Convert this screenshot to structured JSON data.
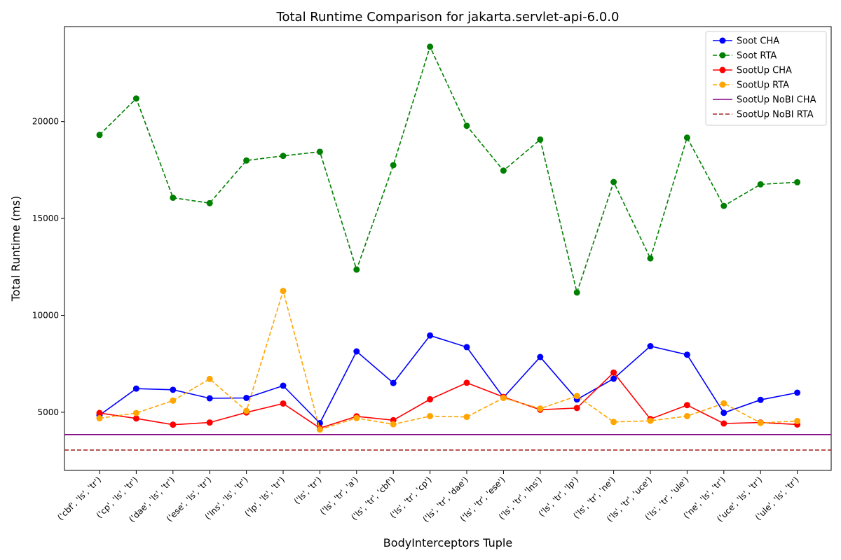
{
  "chart_data": {
    "type": "line",
    "title": "Total Runtime Comparison for jakarta.servlet-api-6.0.0",
    "xlabel": "BodyInterceptors Tuple",
    "ylabel": "Total Runtime (ms)",
    "categories": [
      "('cbf', 'ls', 'tr')",
      "('cp', 'ls', 'tr')",
      "('dae', 'ls', 'tr')",
      "('ese', 'ls', 'tr')",
      "('lns', 'ls', 'tr')",
      "('lp', 'ls', 'tr')",
      "('ls', 'tr')",
      "('ls', 'tr', 'a')",
      "('ls', 'tr', 'cbf')",
      "('ls', 'tr', 'cp')",
      "('ls', 'tr', 'dae')",
      "('ls', 'tr', 'ese')",
      "('ls', 'tr', 'lns')",
      "('ls', 'tr', 'lp')",
      "('ls', 'tr', 'ne')",
      "('ls', 'tr', 'uce')",
      "('ls', 'tr', 'ule')",
      "('ne', 'ls', 'tr')",
      "('uce', 'ls', 'tr')",
      "('ule', 'ls', 'tr')"
    ],
    "ylim": [
      2000,
      24900
    ],
    "yticks": [
      5000,
      10000,
      15000,
      20000
    ],
    "grid": false,
    "legend_position": "top-right",
    "series": [
      {
        "name": "Soot CHA",
        "color": "#0000ff",
        "style": "solid",
        "marker": true,
        "values": [
          4850,
          6220,
          6160,
          5720,
          5740,
          6370,
          4440,
          8140,
          6510,
          8960,
          8360,
          5760,
          7850,
          5660,
          6730,
          8410,
          7970,
          4970,
          5640,
          6010
        ]
      },
      {
        "name": "Soot RTA",
        "color": "#008000",
        "style": "dashed",
        "marker": true,
        "values": [
          19310,
          21190,
          16070,
          15790,
          17990,
          18230,
          18440,
          12360,
          17750,
          23860,
          19780,
          17470,
          19070,
          11180,
          16880,
          12940,
          19170,
          15650,
          16760,
          16870
        ]
      },
      {
        "name": "SootUp CHA",
        "color": "#ff0000",
        "style": "solid",
        "marker": true,
        "values": [
          4960,
          4680,
          4360,
          4470,
          4990,
          5450,
          4180,
          4790,
          4590,
          5670,
          6520,
          5790,
          5130,
          5220,
          7050,
          4650,
          5370,
          4420,
          4470,
          4370
        ]
      },
      {
        "name": "SootUp RTA",
        "color": "#ffa500",
        "style": "dashed",
        "marker": true,
        "values": [
          4690,
          4960,
          5600,
          6720,
          5070,
          11260,
          4110,
          4700,
          4380,
          4800,
          4760,
          5740,
          5190,
          5840,
          4500,
          4560,
          4800,
          5460,
          4450,
          4550
        ]
      },
      {
        "name": "SootUp NoBI CHA",
        "color": "#800080",
        "style": "solid",
        "marker": false,
        "hline": 3850
      },
      {
        "name": "SootUp NoBI RTA",
        "color": "#a52a2a",
        "style": "dashed",
        "marker": false,
        "hline": 3050
      }
    ]
  }
}
